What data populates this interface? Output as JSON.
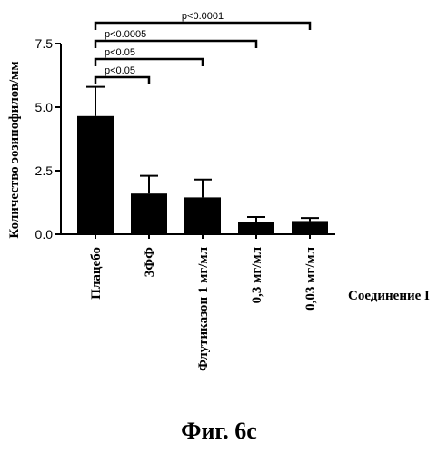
{
  "figure_caption": "Фиг. 6c",
  "chart_data": {
    "type": "bar",
    "categories": [
      "Плацебо",
      "3ФФ",
      "Флутиказон 1 мг/мл",
      "0,3 мг/мл",
      "0,03 мг/мл"
    ],
    "values": [
      4.65,
      1.6,
      1.45,
      0.48,
      0.52
    ],
    "errors": [
      1.15,
      0.7,
      0.7,
      0.2,
      0.12
    ],
    "ylabel": "Количество эозинофилов/мм",
    "xlabel": "Соединение I",
    "ylim": [
      0,
      7.5
    ],
    "yticks": [
      {
        "value": 0,
        "label": "0.0"
      },
      {
        "value": 2.5,
        "label": "2.5"
      },
      {
        "value": 5,
        "label": "5.0"
      },
      {
        "value": 7.5,
        "label": "7.5"
      }
    ],
    "bar_color": "#000000",
    "significance": [
      {
        "from": 0,
        "to": 1,
        "label": "p<0.05"
      },
      {
        "from": 0,
        "to": 2,
        "label": "p<0.05"
      },
      {
        "from": 0,
        "to": 3,
        "label": "p<0.0005"
      },
      {
        "from": 0,
        "to": 4,
        "label": "p<0.0001"
      }
    ]
  }
}
